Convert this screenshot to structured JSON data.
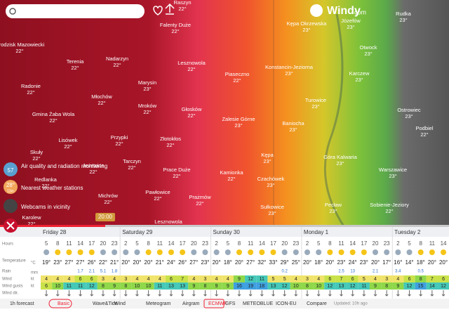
{
  "header": {
    "logo": "Windy",
    "logo_suffix": "com"
  },
  "map": {
    "places": [
      {
        "name": "Raszyn",
        "temp": "22°"
      },
      {
        "name": "Grodzisk Mazowiecki",
        "temp": "22°"
      },
      {
        "name": "Terenia",
        "temp": "22°"
      },
      {
        "name": "Nadarzyn",
        "temp": "22°"
      },
      {
        "name": "Falenty Duże",
        "temp": "22°"
      },
      {
        "name": "Marysin",
        "temp": "23°"
      },
      {
        "name": "Lesznowola",
        "temp": "22°"
      },
      {
        "name": "Piaseczno",
        "temp": "22°"
      },
      {
        "name": "Konstancin-Jeziorna",
        "temp": "23°"
      },
      {
        "name": "Kępa Okrzewska",
        "temp": "23°"
      },
      {
        "name": "Józefów",
        "temp": "23°"
      },
      {
        "name": "Radonie",
        "temp": "22°"
      },
      {
        "name": "Młochów",
        "temp": "22°"
      },
      {
        "name": "Mroków",
        "temp": "22°"
      },
      {
        "name": "Głosków",
        "temp": "22°"
      },
      {
        "name": "Turowice",
        "temp": "23°"
      },
      {
        "name": "Karczew",
        "temp": "23°"
      },
      {
        "name": "Otwock",
        "temp": "23°"
      },
      {
        "name": "Rudka",
        "temp": "23°"
      },
      {
        "name": "Gmina Żaba Wola",
        "temp": "22°"
      },
      {
        "name": "Zalesie Górne",
        "temp": "23°"
      },
      {
        "name": "Baniocha",
        "temp": "23°"
      },
      {
        "name": "Ostrowiec",
        "temp": "23°"
      },
      {
        "name": "Podbiel",
        "temp": "22°"
      },
      {
        "name": "Przypki",
        "temp": "22°"
      },
      {
        "name": "Złotokłos",
        "temp": "22°"
      },
      {
        "name": "Lisówek",
        "temp": "22°"
      },
      {
        "name": "Skuły",
        "temp": "22°"
      },
      {
        "name": "Tarczyn",
        "temp": "22°"
      },
      {
        "name": "Jeżewice",
        "temp": "22°"
      },
      {
        "name": "Prace Duże",
        "temp": "22°"
      },
      {
        "name": "Kamionka",
        "temp": "22°"
      },
      {
        "name": "Kępa",
        "temp": "23°"
      },
      {
        "name": "Góra Kalwaria",
        "temp": "23°"
      },
      {
        "name": "Warszawice",
        "temp": "23°"
      },
      {
        "name": "Redlanka",
        "temp": "22°"
      },
      {
        "name": "Czachówek",
        "temp": "23°"
      },
      {
        "name": "Pawłowice",
        "temp": "22°"
      },
      {
        "name": "Michrów",
        "temp": "22°"
      },
      {
        "name": "Prażmów",
        "temp": "22°"
      },
      {
        "name": "Sobienie-Jeziory",
        "temp": "22°"
      },
      {
        "name": "Karolew",
        "temp": "22°"
      },
      {
        "name": "Sułkowice",
        "temp": "23°"
      },
      {
        "name": "Pecław",
        "temp": "23°"
      },
      {
        "name": "Lesznowola",
        "temp": "22°"
      }
    ]
  },
  "side": {
    "air_label": "Air quality and radiation monitoring",
    "air_value": "57",
    "station_temp": "28°",
    "station_sub": "13m",
    "station_label": "Nearest weather stations",
    "webcam_label": "Webcams in vicinity",
    "time": "20:00"
  },
  "forecast": {
    "days": [
      "Friday 28",
      "Saturday 29",
      "Sunday 30",
      "Monday 1",
      "Tuesday 2"
    ],
    "day_spans": [
      7,
      8,
      8,
      8,
      5
    ],
    "row_labels": {
      "hours": "Hours",
      "temp": "Temperature",
      "temp_unit": "°C",
      "rain": "Rain",
      "rain_unit": "mm",
      "wind": "Wind",
      "wind_unit": "kt",
      "gusts": "Wind gusts",
      "gusts_unit": "kt",
      "dir": "Wind dir."
    },
    "hours": [
      "5",
      "8",
      "11",
      "14",
      "17",
      "20",
      "23",
      "2",
      "5",
      "8",
      "11",
      "14",
      "17",
      "20",
      "23",
      "2",
      "5",
      "8",
      "11",
      "14",
      "17",
      "20",
      "23",
      "2",
      "5",
      "8",
      "11",
      "14",
      "17",
      "20",
      "23",
      "2",
      "5",
      "8",
      "11",
      "14"
    ],
    "temps": [
      "19°",
      "23°",
      "27°",
      "27°",
      "26°",
      "22°",
      "21°",
      "20°",
      "20°",
      "20°",
      "21°",
      "24°",
      "26°",
      "27°",
      "23°",
      "20°",
      "18°",
      "20°",
      "27°",
      "32°",
      "33°",
      "29°",
      "25°",
      "20°",
      "18°",
      "20°",
      "23°",
      "24°",
      "23°",
      "20°",
      "17°",
      "16°",
      "14°",
      "18°",
      "20°",
      "20°"
    ],
    "rain": [
      null,
      null,
      null,
      "1.7",
      "2.1",
      "5.1",
      "1.8",
      null,
      null,
      null,
      null,
      null,
      null,
      null,
      null,
      null,
      null,
      null,
      null,
      null,
      null,
      "0.2",
      null,
      null,
      null,
      null,
      "2.5",
      "13",
      null,
      "2.1",
      null,
      "3.4",
      null,
      "0.5",
      null,
      null
    ],
    "wind": [
      4,
      4,
      4,
      6,
      6,
      3,
      4,
      3,
      4,
      4,
      4,
      6,
      7,
      4,
      3,
      4,
      4,
      9,
      12,
      11,
      5,
      5,
      4,
      3,
      4,
      6,
      7,
      6,
      5,
      4,
      3,
      4,
      6,
      8,
      7,
      6
    ],
    "gusts": [
      6,
      10,
      11,
      11,
      12,
      8,
      9,
      8,
      10,
      10,
      11,
      13,
      13,
      9,
      8,
      9,
      9,
      16,
      19,
      18,
      13,
      12,
      10,
      8,
      10,
      12,
      13,
      12,
      11,
      9,
      8,
      9,
      12,
      15,
      14,
      12
    ]
  },
  "footer": {
    "forecast_1h": "1h forecast",
    "tabs": [
      "Basic",
      "Wave&Tide",
      "Wind",
      "Meteogram",
      "Airgram"
    ],
    "models": [
      "ECMWF",
      "GFS",
      "METEOBLUE",
      "ICON-EU"
    ],
    "compare": "Compare",
    "updated": "Updated: 10h ago"
  }
}
